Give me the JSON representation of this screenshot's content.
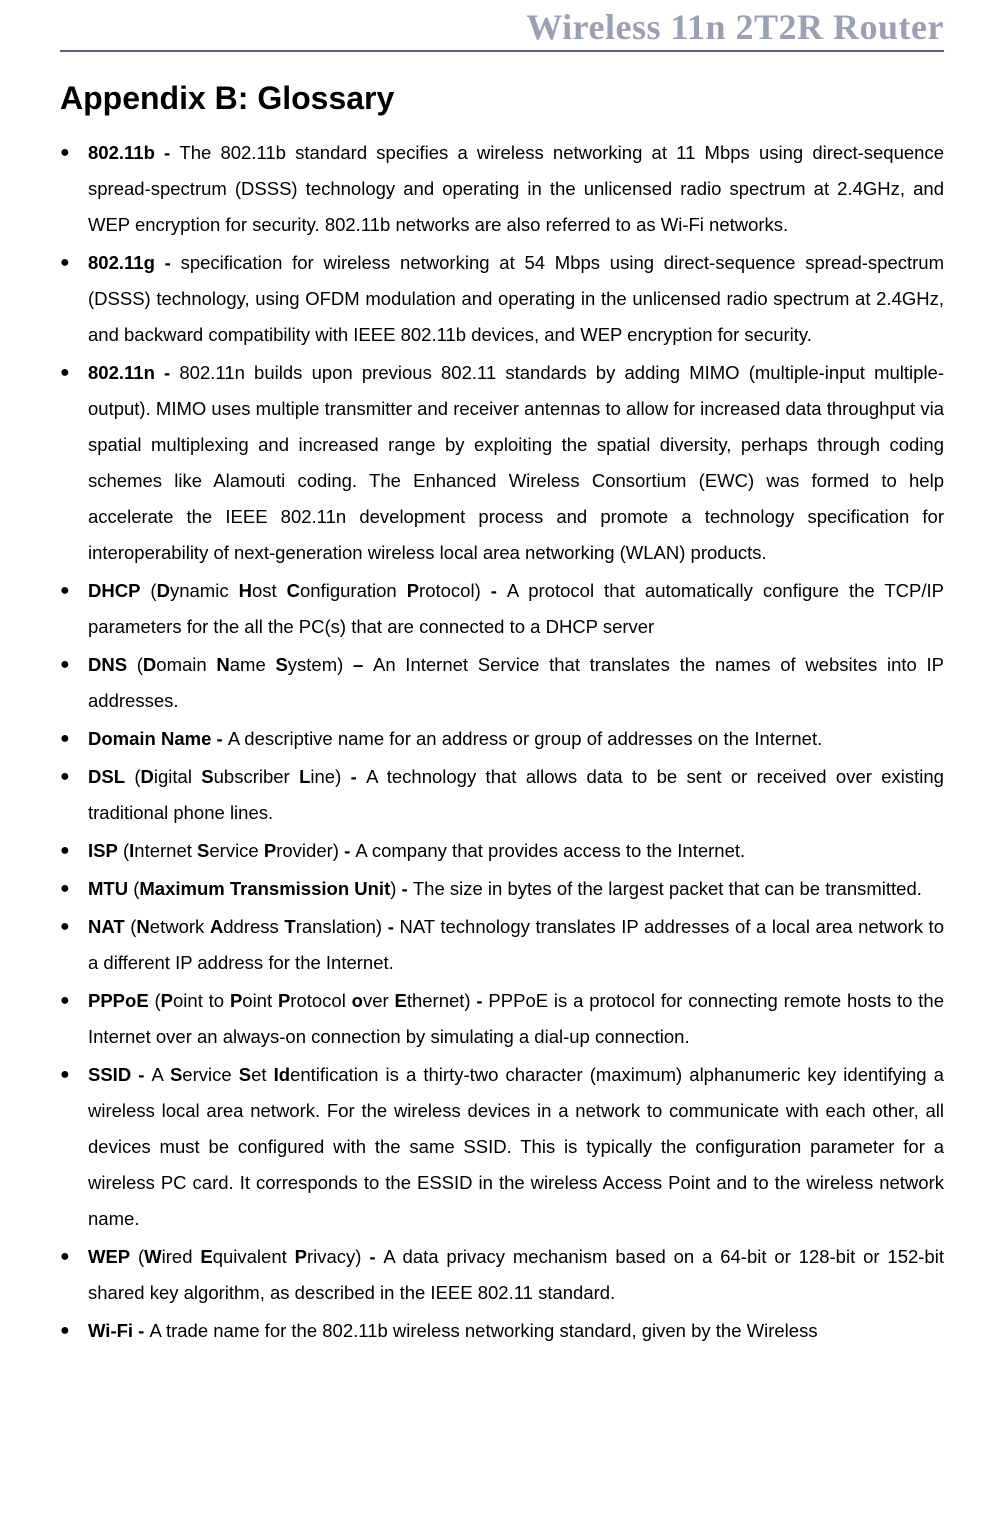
{
  "banner": {
    "text": "Wireless 11n 2T2R Router",
    "text_color": "#9aa1b3",
    "rule_color": "#5a627a",
    "font_size_pt": 27
  },
  "title": {
    "text": "Appendix B: Glossary",
    "font_size_pt": 24,
    "color": "#000000"
  },
  "body_style": {
    "font_family": "Arial",
    "font_size_pt": 14,
    "line_height_pt": 27,
    "text_align": "justify",
    "bullet_char": "●",
    "bullet_color": "#000000",
    "page_bg": "#ffffff"
  },
  "items": [
    {
      "term": "802.11b",
      "dash": " - ",
      "desc": "The 802.11b standard specifies a wireless networking at 11 Mbps using direct-sequence spread-spectrum (DSSS) technology and operating in the unlicensed radio spectrum at 2.4GHz, and WEP encryption for security. 802.11b networks are also referred to as Wi-Fi networks."
    },
    {
      "term": "802.11g",
      "dash": " - ",
      "desc": "specification for wireless networking at 54 Mbps using direct-sequence spread-spectrum (DSSS) technology, using OFDM modulation and operating in the unlicensed radio spectrum at 2.4GHz, and backward compatibility with IEEE 802.11b devices, and WEP encryption for security."
    },
    {
      "term": "802.11n",
      "dash": " - ",
      "desc": "802.11n builds upon previous 802.11 standards by adding MIMO (multiple-input multiple-output). MIMO uses multiple transmitter and receiver antennas to allow for increased data throughput via spatial multiplexing and increased range by exploiting the spatial diversity, perhaps through coding schemes like Alamouti coding. The Enhanced Wireless Consortium (EWC) was formed to help accelerate the IEEE 802.11n development process and promote a technology specification for interoperability of next-generation wireless local area networking (WLAN) products."
    },
    {
      "term": "DHCP",
      "expansion_prefix": " (",
      "expansion_bold_parts": [
        "D",
        "H",
        "C",
        "P"
      ],
      "expansion_rest_parts": [
        "ynamic ",
        "ost ",
        "onfiguration ",
        "rotocol)"
      ],
      "dash": " - ",
      "desc": "A protocol that automatically configure the TCP/IP parameters for the all the PC(s) that are connected to a DHCP server"
    },
    {
      "term": "DNS",
      "expansion_prefix": " (",
      "expansion_bold_parts": [
        "D",
        "N",
        "S"
      ],
      "expansion_rest_parts": [
        "omain ",
        "ame ",
        "ystem)"
      ],
      "dash": " – ",
      "desc": "An Internet Service that translates the names of websites into IP addresses."
    },
    {
      "term": "Domain Name",
      "dash": " - ",
      "desc": "A descriptive name for an address or group of addresses on the Internet."
    },
    {
      "term": "DSL",
      "expansion_prefix": " (",
      "expansion_bold_parts": [
        "D",
        "S",
        "L"
      ],
      "expansion_rest_parts": [
        "igital ",
        "ubscriber ",
        "ine)"
      ],
      "dash": " - ",
      "desc": "A technology that allows data to be sent or received over existing traditional phone lines."
    },
    {
      "term": "ISP",
      "expansion_prefix": " (",
      "expansion_bold_parts": [
        "I",
        "S",
        "P"
      ],
      "expansion_rest_parts": [
        "nternet ",
        "ervice ",
        "rovider)"
      ],
      "dash": " - ",
      "desc": "A company that provides access to the Internet."
    },
    {
      "term": "MTU",
      "expansion_prefix": " (",
      "expansion_full_bold": "Maximum Transmission Unit",
      "expansion_suffix": ")",
      "dash": " - ",
      "desc": "The size in bytes of the largest packet that can be transmitted."
    },
    {
      "term": "NAT",
      "expansion_prefix": " (",
      "expansion_bold_parts": [
        "N",
        "A",
        "T"
      ],
      "expansion_rest_parts": [
        "etwork ",
        "ddress ",
        "ranslation)"
      ],
      "dash": " - ",
      "desc": "NAT technology translates IP addresses of a local area network to a different IP address for the Internet."
    },
    {
      "term": "PPPoE",
      "expansion_prefix": " (",
      "expansion_bold_parts": [
        "P",
        "P",
        "P",
        "o",
        "E"
      ],
      "expansion_rest_parts": [
        "oint to ",
        "oint ",
        "rotocol ",
        "ver ",
        "thernet)"
      ],
      "dash": " - ",
      "desc": "PPPoE is a protocol for connecting remote hosts to the Internet over an always-on connection by simulating a dial-up connection."
    },
    {
      "term": "SSID",
      "dash": " - ",
      "ssid_lead": "A ",
      "ssid_b1": "S",
      "ssid_r1": "ervice ",
      "ssid_b2": "S",
      "ssid_r2": "et ",
      "ssid_b3": "Id",
      "ssid_r3": "entification is a thirty-two character (maximum) alphanumeric key identifying a wireless local area network. For the wireless devices in a network to communicate with each other, all devices must be configured with the same SSID. This is typically the configuration parameter for a wireless PC card. It corresponds to the ESSID in the wireless Access Point and to the wireless network name."
    },
    {
      "term": "WEP",
      "expansion_prefix": " (",
      "expansion_bold_parts": [
        "W",
        "E",
        "P"
      ],
      "expansion_rest_parts": [
        "ired ",
        "quivalent ",
        "rivacy)"
      ],
      "dash": " - ",
      "desc": "A data privacy mechanism based on a 64-bit or 128-bit or 152-bit shared key algorithm, as described in the IEEE 802.11 standard."
    },
    {
      "term": "Wi-Fi",
      "dash": " - ",
      "desc": "A trade name for the 802.11b wireless networking standard, given by the Wireless"
    }
  ]
}
